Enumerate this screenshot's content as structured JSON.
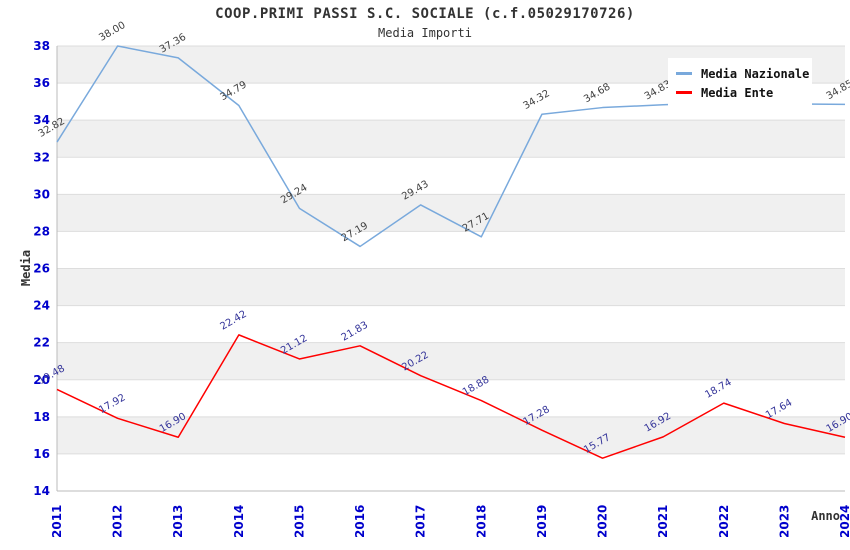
{
  "chart": {
    "title": "COOP.PRIMI PASSI S.C. SOCIALE (c.f.05029170726)",
    "subtitle": "Media Importi",
    "legend": [
      {
        "label": "Media Nazionale",
        "color": "#79a9dc"
      },
      {
        "label": "Media Ente",
        "color": "#ff0000"
      }
    ]
  },
  "chart_data": {
    "type": "line",
    "x": [
      2011,
      2012,
      2013,
      2014,
      2015,
      2016,
      2017,
      2018,
      2019,
      2020,
      2021,
      2022,
      2023,
      2024
    ],
    "series": [
      {
        "name": "Media Nazionale",
        "color": "#79a9dc",
        "label_color": "#404040",
        "values": [
          32.82,
          38.0,
          37.36,
          34.79,
          29.24,
          27.19,
          29.43,
          27.71,
          34.32,
          34.68,
          34.83,
          34.95,
          34.88,
          34.85
        ]
      },
      {
        "name": "Media Ente",
        "color": "#ff0000",
        "label_color": "#333399",
        "values": [
          19.48,
          17.92,
          16.9,
          22.42,
          21.12,
          21.83,
          20.22,
          18.88,
          17.28,
          15.77,
          16.92,
          18.74,
          17.64,
          16.9
        ]
      }
    ],
    "title": "COOP.PRIMI PASSI S.C. SOCIALE (c.f.05029170726)",
    "subtitle": "Media Importi",
    "xlabel": "Anno",
    "ylabel": "Media",
    "ylim": [
      14,
      38
    ],
    "ytick_step": 2,
    "grid": "horizontal-bands-alternating",
    "band_color": "#f0f0f0",
    "gridline_color": "#dddddd",
    "axis_color": "#bbbbbb",
    "tick_label_color": "#0000cc",
    "legend_position": "top-right"
  }
}
